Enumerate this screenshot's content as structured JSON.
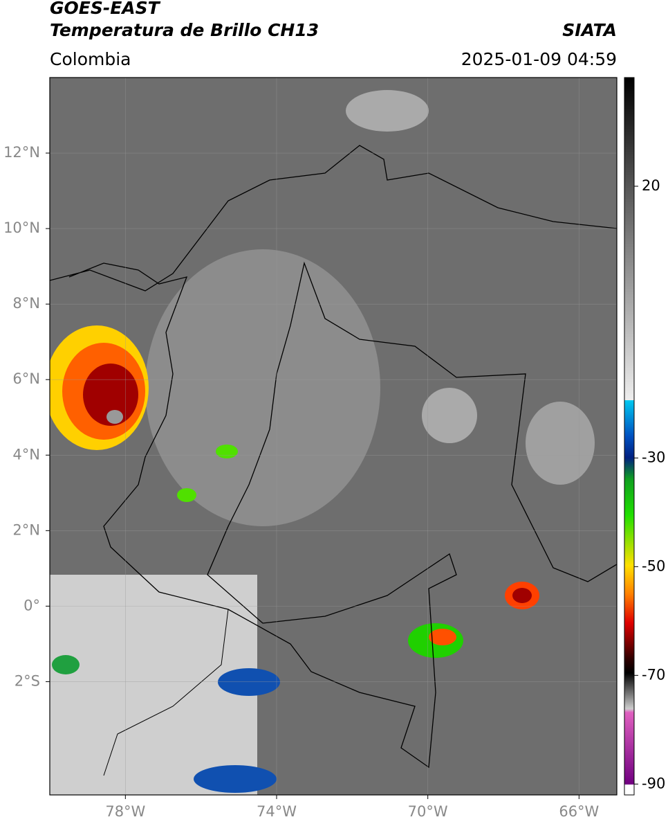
{
  "header": {
    "satellite": "GOES-EAST",
    "product": "Temperatura de Brillo CH13",
    "region": "Colombia",
    "source": "SIATA",
    "datetime": "2025-01-09 04:59"
  },
  "map": {
    "xlim": [
      -80,
      -65
    ],
    "ylim": [
      -5,
      14
    ],
    "xticks": [
      {
        "value": -78,
        "label": "78°W"
      },
      {
        "value": -74,
        "label": "74°W"
      },
      {
        "value": -70,
        "label": "70°W"
      },
      {
        "value": -66,
        "label": "66°W"
      }
    ],
    "yticks": [
      {
        "value": 12,
        "label": "12°N"
      },
      {
        "value": 10,
        "label": "10°N"
      },
      {
        "value": 8,
        "label": "8°N"
      },
      {
        "value": 6,
        "label": "6°N"
      },
      {
        "value": 4,
        "label": "4°N"
      },
      {
        "value": 2,
        "label": "2°N"
      },
      {
        "value": 0,
        "label": "0°"
      },
      {
        "value": -2,
        "label": "2°S"
      }
    ],
    "grid": true
  },
  "colorbar": {
    "lim": [
      -92,
      40
    ],
    "ticks": [
      20,
      -30,
      -50,
      -70,
      -90
    ]
  }
}
